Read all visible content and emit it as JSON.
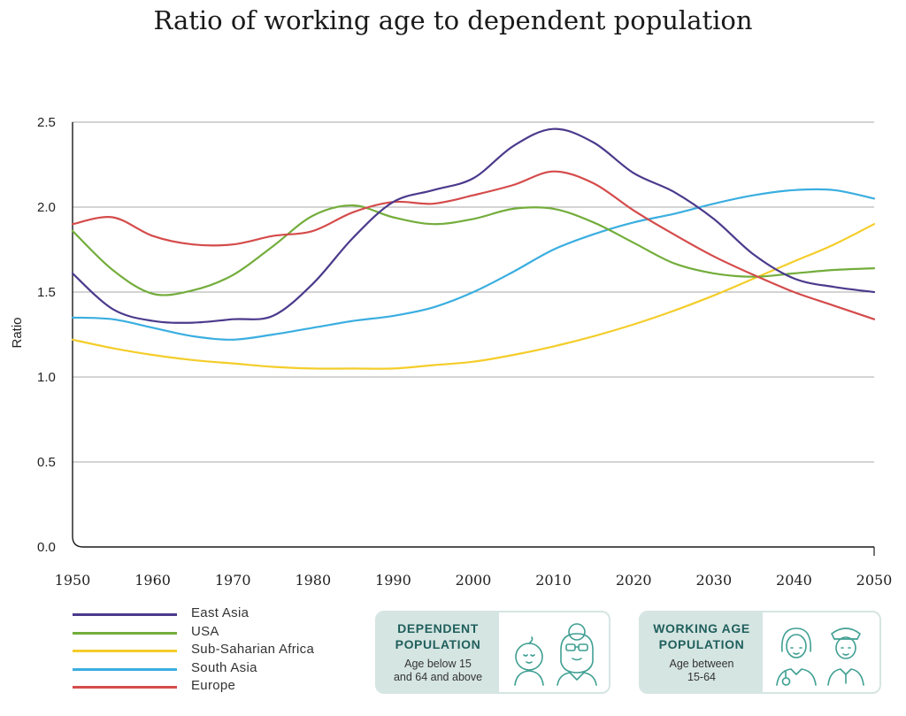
{
  "chart_data": {
    "type": "line",
    "title": "Ratio of working age to dependent population",
    "xlabel": "",
    "ylabel": "Ratio",
    "xlim": [
      1950,
      2050
    ],
    "ylim": [
      0,
      2.5
    ],
    "x_ticks": [
      "1950",
      "1960",
      "1970",
      "1980",
      "1990",
      "2000",
      "2010",
      "2020",
      "2030",
      "2040",
      "2050"
    ],
    "y_ticks": [
      "0.0",
      "0.5",
      "1.0",
      "1.5",
      "2.0",
      "2.5"
    ],
    "grid": true,
    "x": [
      1950,
      1955,
      1960,
      1965,
      1970,
      1975,
      1980,
      1985,
      1990,
      1995,
      2000,
      2005,
      2010,
      2015,
      2020,
      2025,
      2030,
      2035,
      2040,
      2045,
      2050
    ],
    "series": [
      {
        "name": "East Asia",
        "color": "#4b3a8c",
        "values": [
          1.61,
          1.4,
          1.33,
          1.32,
          1.34,
          1.36,
          1.55,
          1.82,
          2.03,
          2.1,
          2.17,
          2.36,
          2.46,
          2.38,
          2.2,
          2.09,
          1.93,
          1.72,
          1.58,
          1.53,
          1.5
        ]
      },
      {
        "name": "USA",
        "color": "#73ad3b",
        "values": [
          1.86,
          1.63,
          1.49,
          1.51,
          1.6,
          1.77,
          1.95,
          2.01,
          1.94,
          1.9,
          1.93,
          1.99,
          1.99,
          1.91,
          1.79,
          1.67,
          1.61,
          1.59,
          1.61,
          1.63,
          1.64
        ]
      },
      {
        "name": "Sub-Saharian Africa",
        "color": "#f4cd2a",
        "values": [
          1.22,
          1.17,
          1.13,
          1.1,
          1.08,
          1.06,
          1.05,
          1.05,
          1.05,
          1.07,
          1.09,
          1.13,
          1.18,
          1.24,
          1.31,
          1.39,
          1.48,
          1.58,
          1.68,
          1.78,
          1.9
        ]
      },
      {
        "name": "South Asia",
        "color": "#3aaee0",
        "values": [
          1.35,
          1.34,
          1.29,
          1.24,
          1.22,
          1.25,
          1.29,
          1.33,
          1.36,
          1.41,
          1.5,
          1.62,
          1.75,
          1.84,
          1.91,
          1.96,
          2.02,
          2.07,
          2.1,
          2.1,
          2.05
        ]
      },
      {
        "name": "Europe",
        "color": "#d54b4b",
        "values": [
          1.9,
          1.94,
          1.83,
          1.78,
          1.78,
          1.83,
          1.86,
          1.97,
          2.03,
          2.02,
          2.07,
          2.13,
          2.21,
          2.14,
          1.98,
          1.84,
          1.71,
          1.6,
          1.5,
          1.42,
          1.34
        ]
      }
    ]
  },
  "infocards": [
    {
      "heading_lines": [
        "DEPENDENT",
        "POPULATION"
      ],
      "sub_lines": [
        "Age below 15",
        "and 64 and above"
      ],
      "icons": [
        "baby-icon",
        "elderly-person-icon"
      ]
    },
    {
      "heading_lines": [
        "WORKING AGE",
        "POPULATION"
      ],
      "sub_lines": [
        "Age between",
        "15-64"
      ],
      "icons": [
        "nurse-icon",
        "police-officer-icon"
      ]
    }
  ]
}
